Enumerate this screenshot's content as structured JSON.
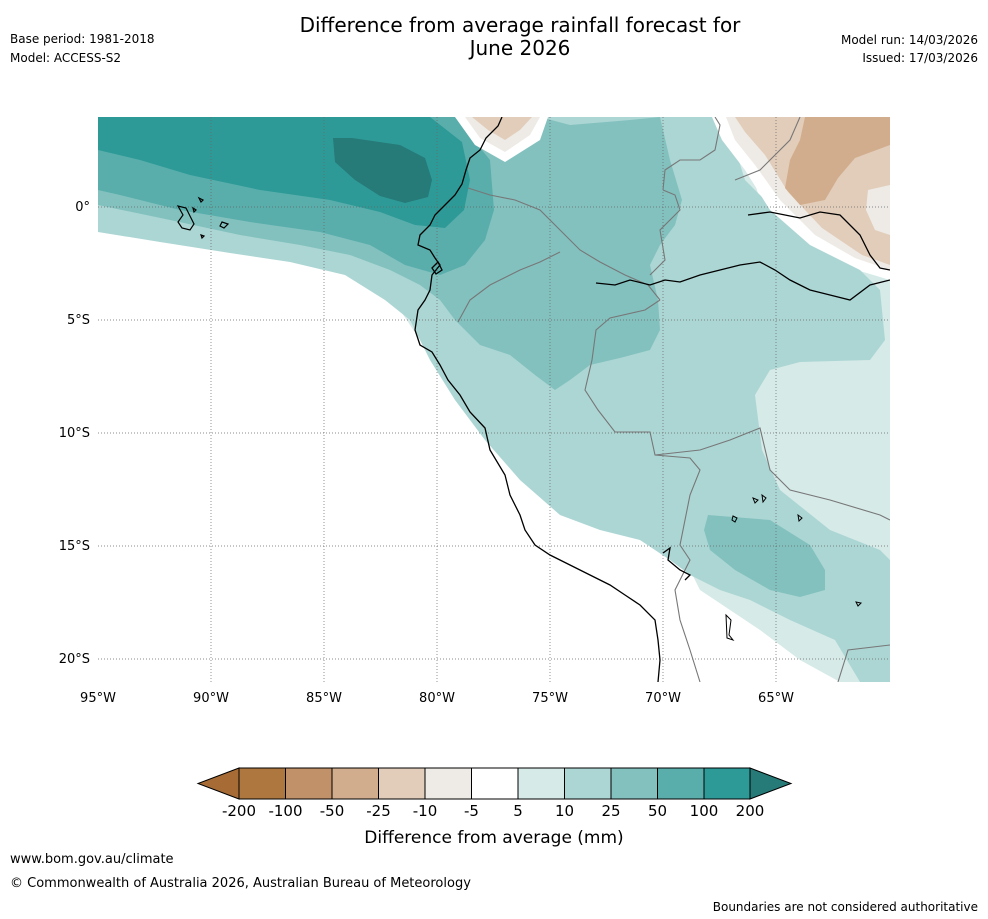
{
  "header": {
    "title_line1": "Difference from average rainfall forecast for",
    "title_line2": "June 2026",
    "base_period": "Base period: 1981-2018",
    "model": "Model: ACCESS-S2",
    "model_run": "Model run: 14/03/2026",
    "issued": "Issued: 17/03/2026"
  },
  "map": {
    "region": "Western South America (Ecuador, Peru, Colombia, Brazil, Bolivia)",
    "lon_labels": [
      "95°W",
      "90°W",
      "85°W",
      "80°W",
      "75°W",
      "70°W",
      "65°W"
    ],
    "lat_labels": [
      "0°",
      "5°S",
      "10°S",
      "15°S",
      "20°S"
    ],
    "lon_values": [
      -95,
      -90,
      -85,
      -80,
      -75,
      -70,
      -65
    ],
    "lat_values": [
      0,
      -5,
      -10,
      -15,
      -20
    ],
    "extent": {
      "lon_min": -95,
      "lon_max": -60,
      "lat_min": -21,
      "lat_max": 4
    }
  },
  "colorbar": {
    "title": "Difference from average (mm)",
    "ticks": [
      "-200",
      "-100",
      "-50",
      "-25",
      "-10",
      "-5",
      "5",
      "10",
      "25",
      "50",
      "100",
      "200"
    ],
    "colors": [
      "#a76c35",
      "#ae7740",
      "#c19169",
      "#d1ad8d",
      "#e2cdba",
      "#eeebe6",
      "#ffffff",
      "#d6eae8",
      "#acd6d4",
      "#83c1bf",
      "#59aeab",
      "#2e9a97",
      "#267a77"
    ]
  },
  "footer": {
    "url": "www.bom.gov.au/climate",
    "copyright": "© Commonwealth of Australia 2026, Australian Bureau of Meteorology",
    "disclaimer": "Boundaries are not considered authoritative"
  }
}
